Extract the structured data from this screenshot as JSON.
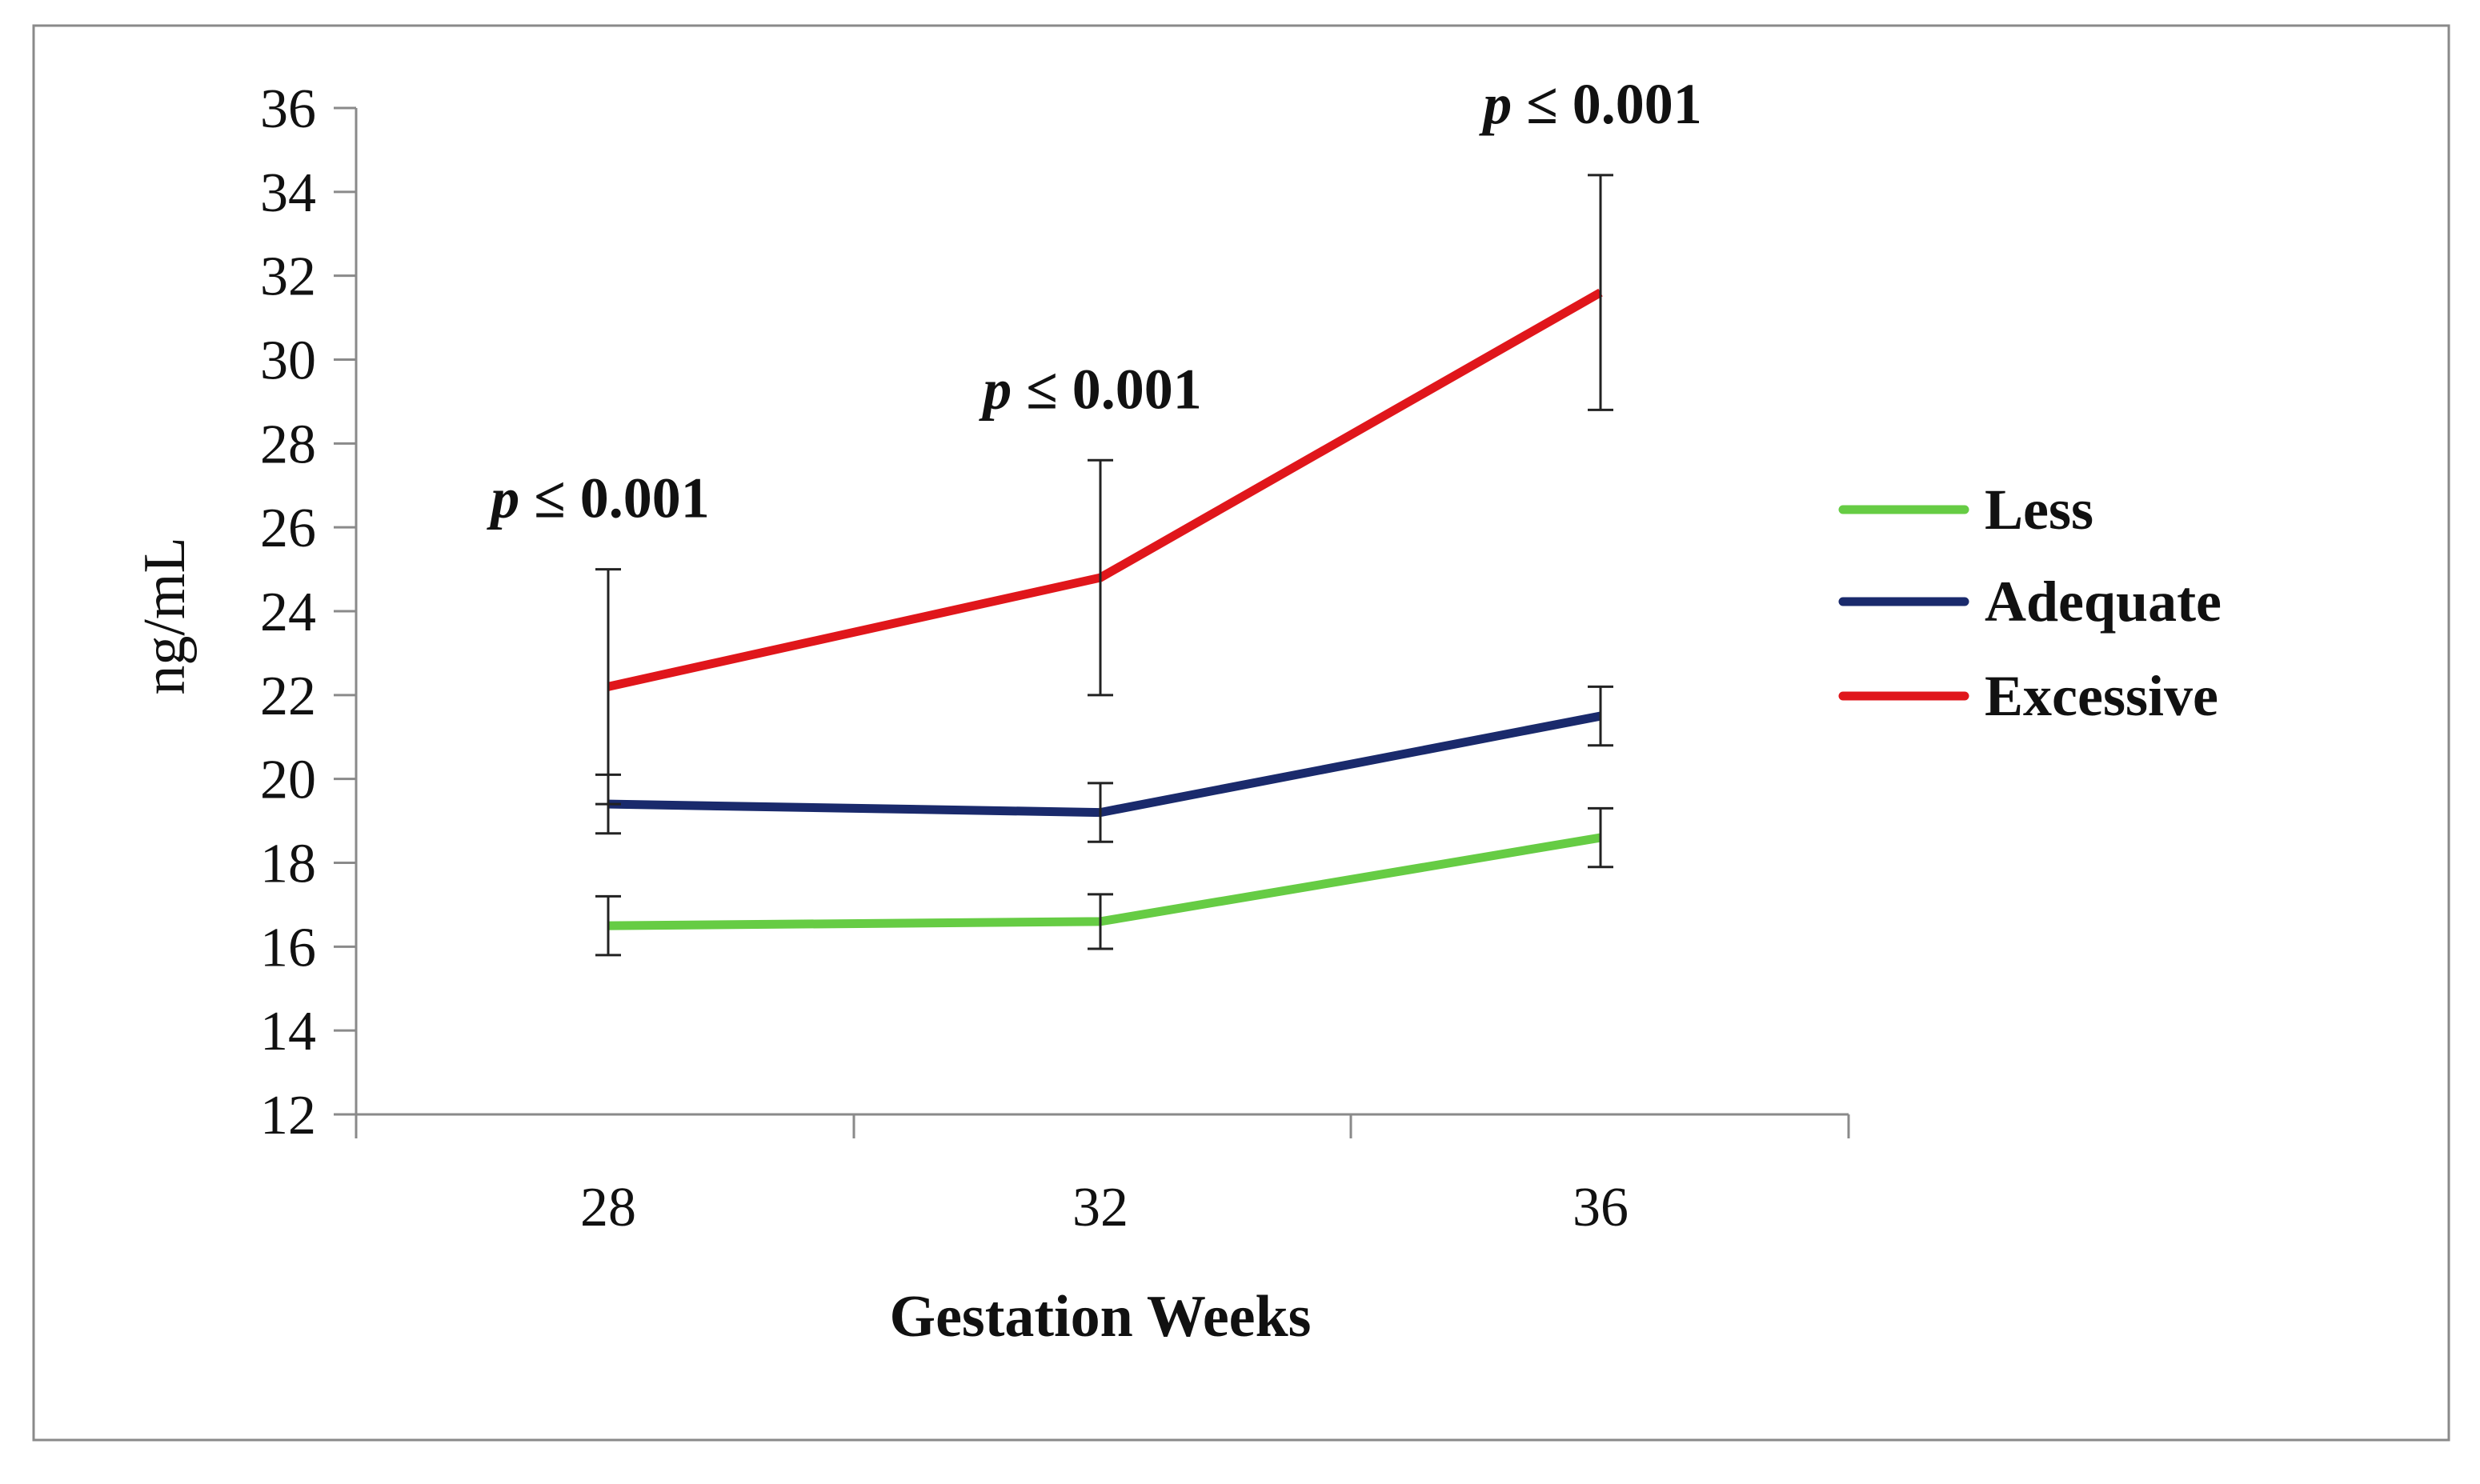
{
  "chart_data": {
    "type": "line",
    "title": "",
    "xlabel": "Gestation Weeks",
    "ylabel": "ng/mL",
    "x": [
      28,
      32,
      36
    ],
    "x_tick_labels": [
      "28",
      "32",
      "36"
    ],
    "ylim": [
      12,
      36
    ],
    "y_ticks": [
      12,
      14,
      16,
      18,
      20,
      22,
      24,
      26,
      28,
      30,
      32,
      34,
      36
    ],
    "y_tick_labels": [
      "12",
      "14",
      "16",
      "18",
      "20",
      "22",
      "24",
      "26",
      "28",
      "30",
      "32",
      "34",
      "36"
    ],
    "grid": false,
    "legend_position": "right",
    "series": [
      {
        "name": "Less",
        "color": "#66cc44",
        "values": [
          16.5,
          16.6,
          18.6
        ],
        "error": [
          0.7,
          0.65,
          0.7
        ]
      },
      {
        "name": "Adequate",
        "color": "#1a2a6c",
        "values": [
          19.4,
          19.2,
          21.5
        ],
        "error": [
          0.7,
          0.7,
          0.7
        ]
      },
      {
        "name": "Excessive",
        "color": "#e0161b",
        "values": [
          22.2,
          24.8,
          31.6
        ],
        "error": [
          2.8,
          2.8,
          2.8
        ]
      }
    ],
    "annotations": [
      {
        "x": 28,
        "p_symbol": "p",
        "text": " ≤ 0.001"
      },
      {
        "x": 32,
        "p_symbol": "p",
        "text": " ≤ 0.001"
      },
      {
        "x": 36,
        "p_symbol": "p",
        "text": " ≤ 0.001"
      }
    ]
  }
}
